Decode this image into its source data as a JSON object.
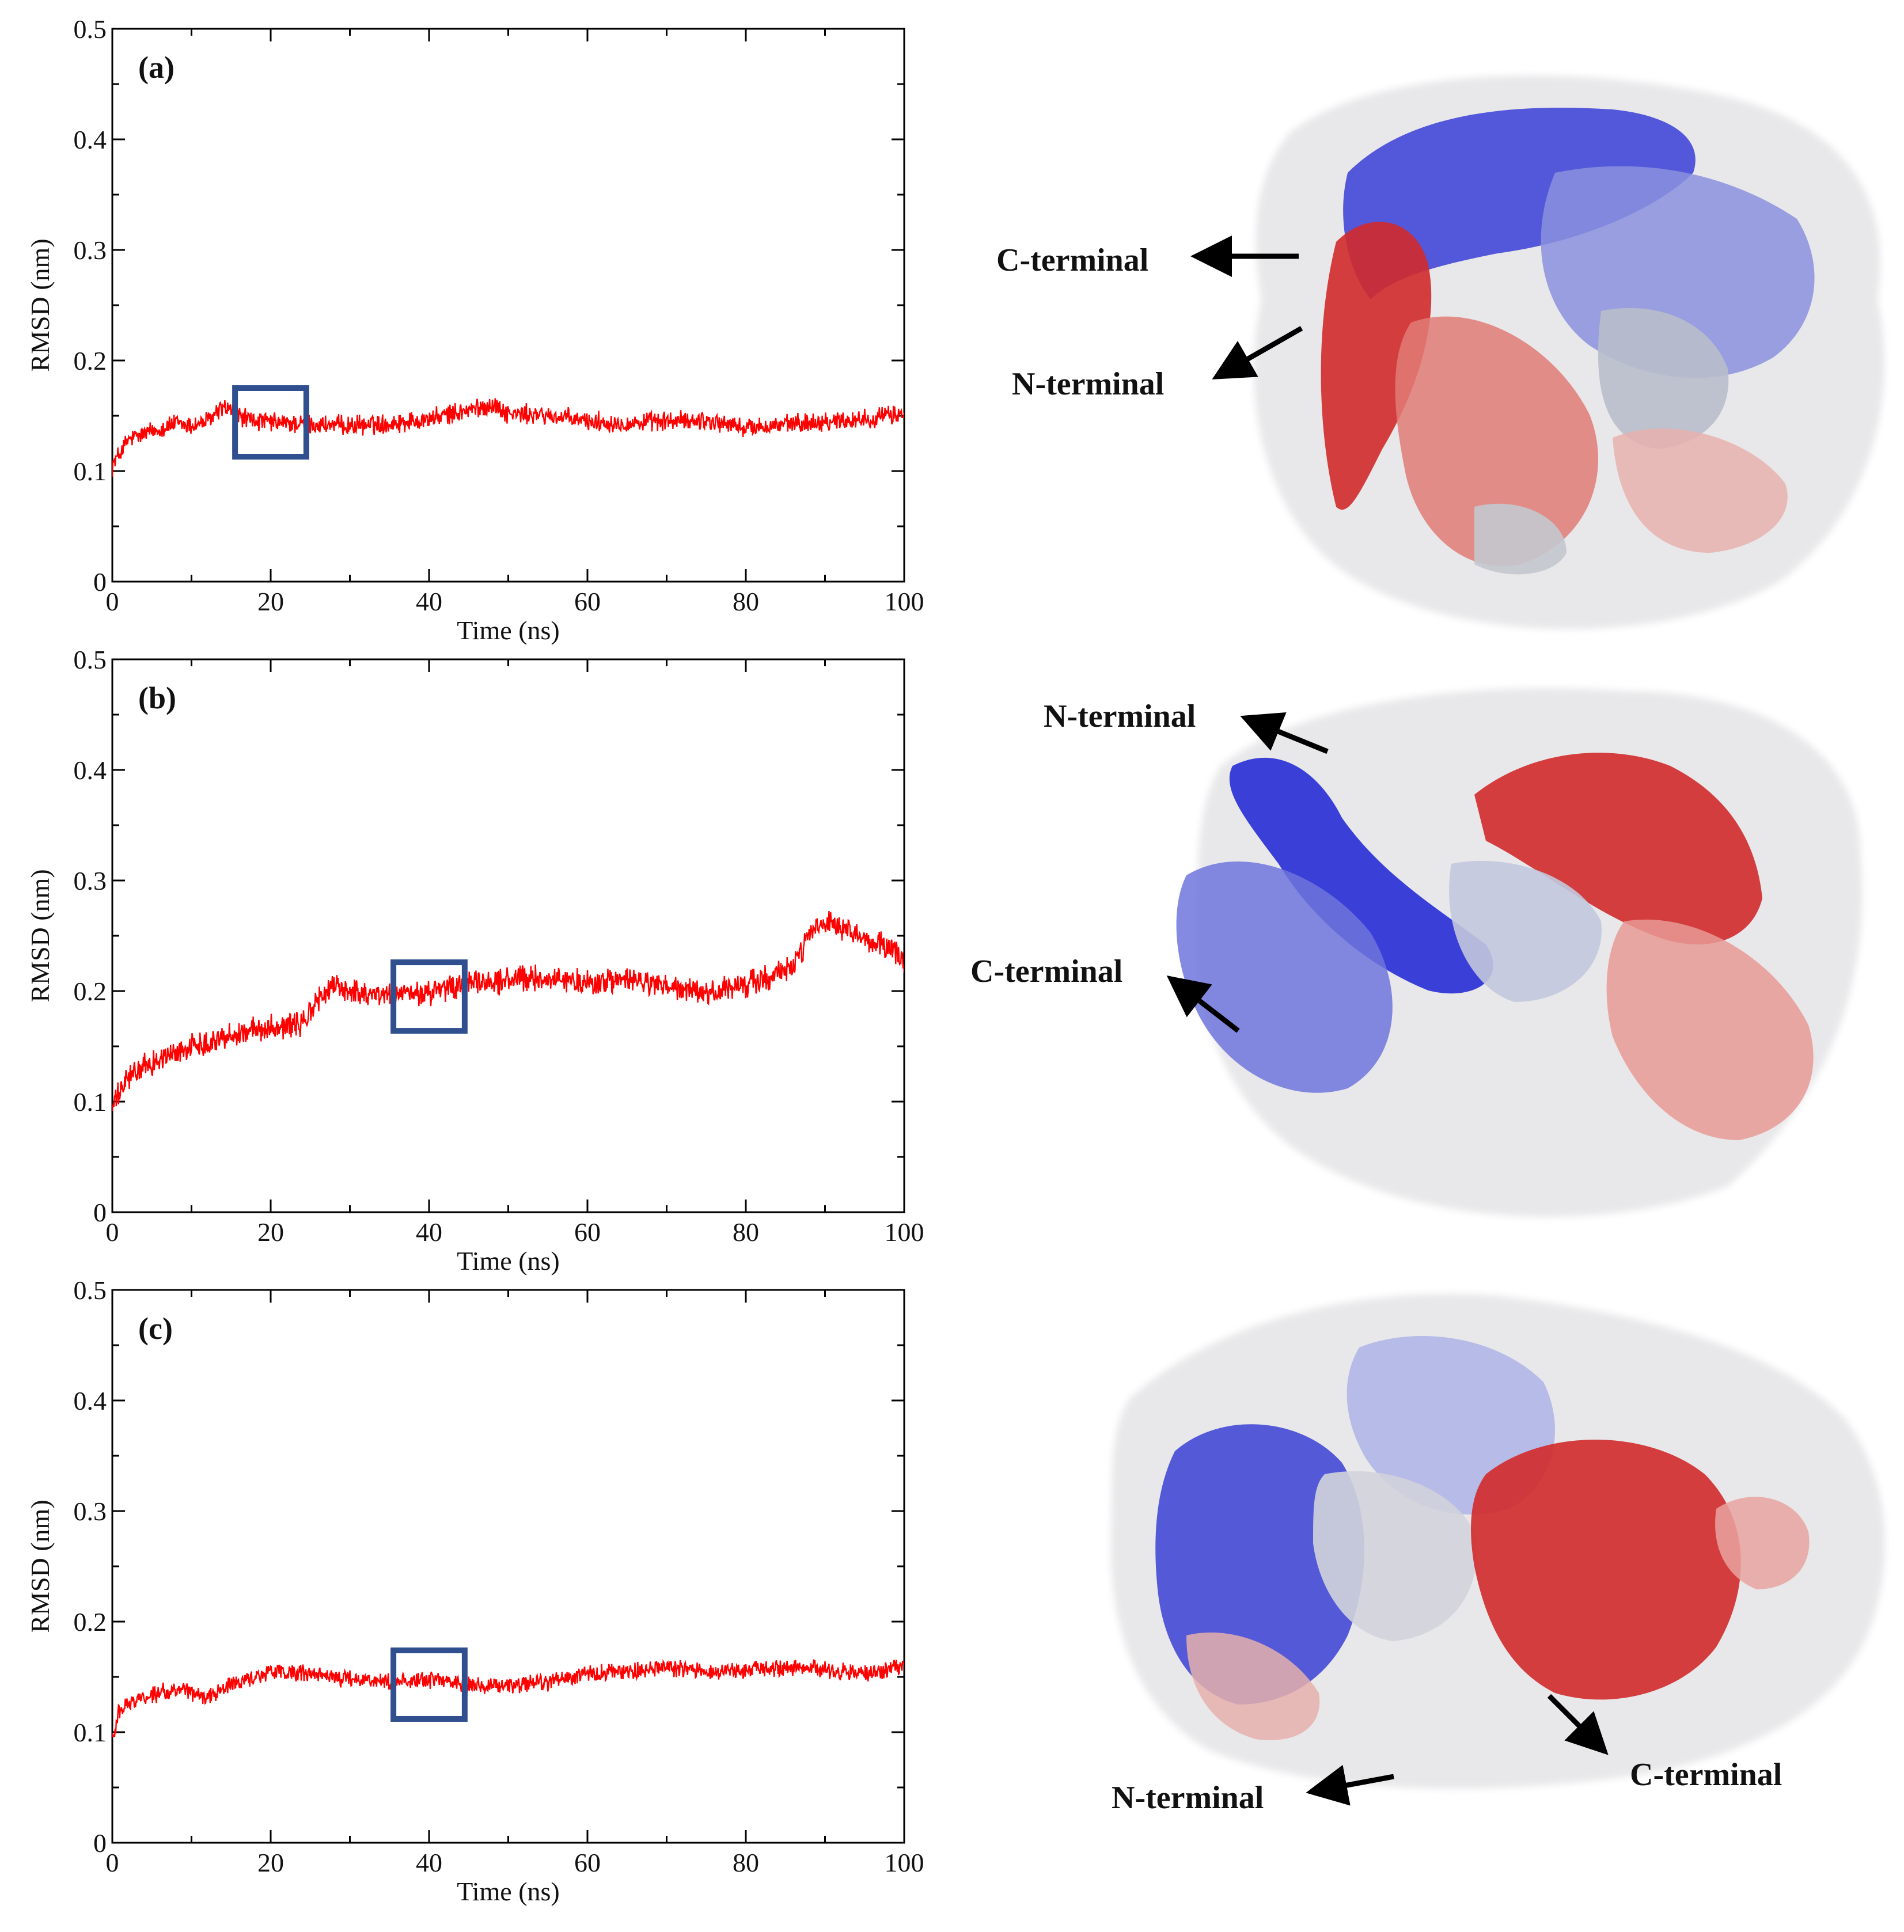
{
  "colors": {
    "series": "#ff0000",
    "highlight_box": "#2f4f8f",
    "protein_blue": "#3a3fdc",
    "protein_red": "#d22a2a",
    "protein_grey": "#c9cad6",
    "surface": "#eeeeee",
    "arrow": "#000000"
  },
  "chart_data": [
    {
      "type": "line",
      "panel_label": "(a)",
      "xlabel": "Time (ns)",
      "ylabel": "RMSD (nm)",
      "xlim": [
        0,
        100
      ],
      "ylim": [
        0,
        0.5
      ],
      "x_ticks": [
        0,
        20,
        40,
        60,
        80,
        100
      ],
      "y_ticks": [
        0,
        0.1,
        0.2,
        0.3,
        0.4,
        0.5
      ],
      "x_tick_labels": [
        "0",
        "20",
        "40",
        "60",
        "80",
        "100"
      ],
      "y_tick_labels": [
        "0",
        "0.1",
        "0.2",
        "0.3",
        "0.4",
        "0.5"
      ],
      "grid": false,
      "series": [
        {
          "color": "#ff0000",
          "noise": 0.007,
          "x": [
            0,
            2,
            5,
            8,
            10,
            12,
            14,
            16,
            18,
            20,
            25,
            30,
            35,
            40,
            45,
            48,
            50,
            55,
            60,
            65,
            70,
            75,
            80,
            85,
            90,
            95,
            100
          ],
          "y": [
            0.105,
            0.128,
            0.136,
            0.143,
            0.141,
            0.145,
            0.158,
            0.15,
            0.145,
            0.144,
            0.142,
            0.141,
            0.143,
            0.147,
            0.155,
            0.16,
            0.152,
            0.15,
            0.145,
            0.143,
            0.145,
            0.146,
            0.139,
            0.142,
            0.145,
            0.147,
            0.152
          ]
        }
      ],
      "highlight_box": {
        "x_range": [
          15.5,
          24.5
        ],
        "y_range": [
          0.113,
          0.175
        ]
      }
    },
    {
      "type": "line",
      "panel_label": "(b)",
      "xlabel": "Time (ns)",
      "ylabel": "RMSD (nm)",
      "xlim": [
        0,
        100
      ],
      "ylim": [
        0,
        0.5
      ],
      "x_ticks": [
        0,
        20,
        40,
        60,
        80,
        100
      ],
      "y_ticks": [
        0,
        0.1,
        0.2,
        0.3,
        0.4,
        0.5
      ],
      "x_tick_labels": [
        "0",
        "20",
        "40",
        "60",
        "80",
        "100"
      ],
      "y_tick_labels": [
        "0",
        "0.1",
        "0.2",
        "0.3",
        "0.4",
        "0.5"
      ],
      "grid": false,
      "series": [
        {
          "color": "#ff0000",
          "noise": 0.009,
          "x": [
            0,
            2,
            5,
            10,
            15,
            20,
            24,
            26,
            28,
            30,
            35,
            40,
            45,
            50,
            55,
            60,
            65,
            70,
            75,
            78,
            82,
            86,
            88,
            90,
            92,
            95,
            98,
            100
          ],
          "y": [
            0.095,
            0.122,
            0.135,
            0.15,
            0.16,
            0.168,
            0.17,
            0.192,
            0.205,
            0.2,
            0.196,
            0.198,
            0.206,
            0.21,
            0.212,
            0.207,
            0.21,
            0.204,
            0.197,
            0.202,
            0.21,
            0.222,
            0.25,
            0.262,
            0.255,
            0.246,
            0.24,
            0.228
          ]
        }
      ],
      "highlight_box": {
        "x_range": [
          35.5,
          44.5
        ],
        "y_range": [
          0.164,
          0.226
        ]
      }
    },
    {
      "type": "line",
      "panel_label": "(c)",
      "xlabel": "Time (ns)",
      "ylabel": "RMSD (nm)",
      "xlim": [
        0,
        100
      ],
      "ylim": [
        0,
        0.5
      ],
      "x_ticks": [
        0,
        20,
        40,
        60,
        80,
        100
      ],
      "y_ticks": [
        0,
        0.1,
        0.2,
        0.3,
        0.4,
        0.5
      ],
      "x_tick_labels": [
        "0",
        "20",
        "40",
        "60",
        "80",
        "100"
      ],
      "y_tick_labels": [
        "0",
        "0.1",
        "0.2",
        "0.3",
        "0.4",
        "0.5"
      ],
      "grid": false,
      "series": [
        {
          "color": "#ff0000",
          "noise": 0.006,
          "x": [
            0,
            1,
            3,
            6,
            9,
            12,
            15,
            18,
            20,
            25,
            30,
            35,
            40,
            45,
            50,
            55,
            60,
            65,
            70,
            75,
            80,
            85,
            90,
            95,
            100
          ],
          "y": [
            0.095,
            0.122,
            0.13,
            0.136,
            0.138,
            0.132,
            0.143,
            0.15,
            0.155,
            0.152,
            0.148,
            0.146,
            0.148,
            0.143,
            0.142,
            0.145,
            0.153,
            0.155,
            0.158,
            0.156,
            0.156,
            0.158,
            0.157,
            0.152,
            0.16
          ]
        }
      ],
      "highlight_box": {
        "x_range": [
          35.5,
          44.5
        ],
        "y_range": [
          0.112,
          0.174
        ]
      }
    }
  ],
  "structures": [
    {
      "id": "a",
      "labels": [
        "C-terminal",
        "N-terminal"
      ]
    },
    {
      "id": "b",
      "labels": [
        "N-terminal",
        "C-terminal"
      ]
    },
    {
      "id": "c",
      "labels": [
        "N-terminal",
        "C-terminal"
      ]
    }
  ]
}
